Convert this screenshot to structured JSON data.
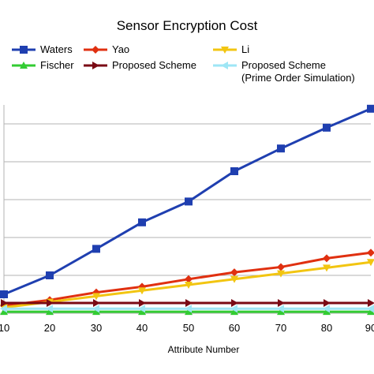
{
  "chart_data": {
    "type": "line",
    "title": "Sensor Encryption Cost",
    "xlabel": "Attribute Number",
    "ylabel": "",
    "x": [
      10,
      20,
      30,
      40,
      50,
      60,
      70,
      80,
      90
    ],
    "xlim": [
      10,
      90
    ],
    "ylim": [
      0,
      5.5
    ],
    "grid": "horizontal",
    "legend_position": "top",
    "series": [
      {
        "name": "Waters",
        "color": "#1f3fb0",
        "marker": "square",
        "values": [
          0.5,
          1.0,
          1.7,
          2.4,
          2.95,
          3.75,
          4.35,
          4.9,
          5.4
        ]
      },
      {
        "name": "Yao",
        "color": "#e03010",
        "marker": "diamond",
        "values": [
          0.2,
          0.35,
          0.55,
          0.7,
          0.9,
          1.08,
          1.22,
          1.45,
          1.6
        ]
      },
      {
        "name": "Li",
        "color": "#f2c511",
        "marker": "triangle-down",
        "values": [
          0.15,
          0.3,
          0.45,
          0.6,
          0.75,
          0.9,
          1.05,
          1.2,
          1.35
        ]
      },
      {
        "name": "Fischer",
        "color": "#33cc33",
        "marker": "triangle-up",
        "values": [
          0.04,
          0.04,
          0.04,
          0.04,
          0.04,
          0.04,
          0.04,
          0.04,
          0.04
        ]
      },
      {
        "name": "Proposed Scheme",
        "color": "#7a0a14",
        "marker": "triangle-right",
        "values": [
          0.27,
          0.27,
          0.27,
          0.27,
          0.27,
          0.27,
          0.27,
          0.27,
          0.27
        ]
      },
      {
        "name": "Proposed Scheme\n(Prime Order Simulation)",
        "color": "#9ee6f5",
        "marker": "triangle-left",
        "values": [
          0.12,
          0.12,
          0.12,
          0.12,
          0.12,
          0.12,
          0.12,
          0.12,
          0.12
        ]
      }
    ]
  }
}
